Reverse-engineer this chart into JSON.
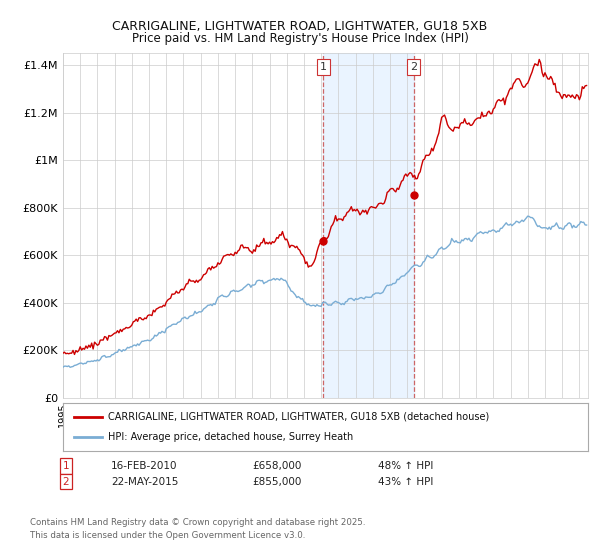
{
  "title1": "CARRIGALINE, LIGHTWATER ROAD, LIGHTWATER, GU18 5XB",
  "title2": "Price paid vs. HM Land Registry's House Price Index (HPI)",
  "xlim_start": 1995.0,
  "xlim_end": 2025.5,
  "ylim_min": 0,
  "ylim_max": 1450000,
  "yticks": [
    0,
    200000,
    400000,
    600000,
    800000,
    1000000,
    1200000,
    1400000
  ],
  "ytick_labels": [
    "£0",
    "£200K",
    "£400K",
    "£600K",
    "£800K",
    "£1M",
    "£1.2M",
    "£1.4M"
  ],
  "transaction1_x": 2010.12,
  "transaction1_y": 658000,
  "transaction2_x": 2015.38,
  "transaction2_y": 855000,
  "annotation1_date": "16-FEB-2010",
  "annotation1_price": "£658,000",
  "annotation1_hpi": "48% ↑ HPI",
  "annotation2_date": "22-MAY-2015",
  "annotation2_price": "£855,000",
  "annotation2_hpi": "43% ↑ HPI",
  "legend_line1": "CARRIGALINE, LIGHTWATER ROAD, LIGHTWATER, GU18 5XB (detached house)",
  "legend_line2": "HPI: Average price, detached house, Surrey Heath",
  "footer": "Contains HM Land Registry data © Crown copyright and database right 2025.\nThis data is licensed under the Open Government Licence v3.0.",
  "color_property": "#cc0000",
  "color_hpi": "#7aadd4",
  "color_vline": "#cc6666",
  "color_shade": "#ddeeff",
  "background_color": "#ffffff",
  "grid_color": "#cccccc"
}
